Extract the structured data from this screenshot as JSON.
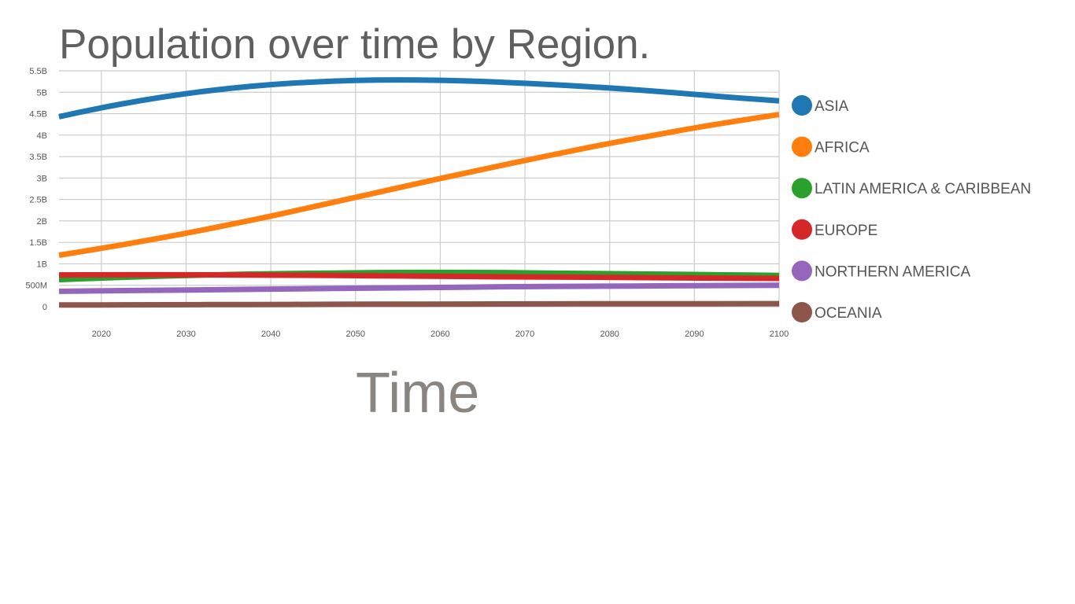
{
  "chart_data": {
    "type": "line",
    "title": "Population over time by Region.",
    "xlabel": "Time",
    "ylabel": "",
    "xlim": [
      2015,
      2100
    ],
    "ylim": [
      0,
      5500000000
    ],
    "x_ticks": [
      2020,
      2030,
      2040,
      2050,
      2060,
      2070,
      2080,
      2090,
      2100
    ],
    "y_ticks": [
      {
        "value": 0,
        "label": "0"
      },
      {
        "value": 500000000,
        "label": "500M"
      },
      {
        "value": 1000000000,
        "label": "1B"
      },
      {
        "value": 1500000000,
        "label": "1.5B"
      },
      {
        "value": 2000000000,
        "label": "2B"
      },
      {
        "value": 2500000000,
        "label": "2.5B"
      },
      {
        "value": 3000000000,
        "label": "3B"
      },
      {
        "value": 3500000000,
        "label": "3.5B"
      },
      {
        "value": 4000000000,
        "label": "4B"
      },
      {
        "value": 4500000000,
        "label": "4.5B"
      },
      {
        "value": 5000000000,
        "label": "5B"
      },
      {
        "value": 5500000000,
        "label": "5.5B"
      }
    ],
    "grid": true,
    "legend_position": "right",
    "x": [
      2015,
      2020,
      2025,
      2030,
      2035,
      2040,
      2045,
      2050,
      2055,
      2060,
      2065,
      2070,
      2075,
      2080,
      2085,
      2090,
      2095,
      2100
    ],
    "series": [
      {
        "name": "ASIA",
        "color": "#1f77b4",
        "values": [
          4430000000,
          4640000000,
          4820000000,
          4970000000,
          5090000000,
          5180000000,
          5240000000,
          5280000000,
          5290000000,
          5280000000,
          5250000000,
          5210000000,
          5160000000,
          5100000000,
          5030000000,
          4950000000,
          4870000000,
          4800000000
        ]
      },
      {
        "name": "AFRICA",
        "color": "#ff7f0e",
        "values": [
          1200000000,
          1360000000,
          1530000000,
          1710000000,
          1910000000,
          2110000000,
          2330000000,
          2550000000,
          2770000000,
          2990000000,
          3200000000,
          3410000000,
          3610000000,
          3810000000,
          3990000000,
          4170000000,
          4330000000,
          4480000000
        ]
      },
      {
        "name": "LATIN AMERICA & CARIBBEAN",
        "color": "#2ca02c",
        "values": [
          630000000,
          670000000,
          700000000,
          730000000,
          750000000,
          770000000,
          780000000,
          790000000,
          800000000,
          800000000,
          800000000,
          790000000,
          780000000,
          770000000,
          760000000,
          750000000,
          740000000,
          730000000
        ]
      },
      {
        "name": "EUROPE",
        "color": "#d62728",
        "values": [
          740000000,
          745000000,
          745000000,
          745000000,
          740000000,
          735000000,
          730000000,
          725000000,
          715000000,
          710000000,
          700000000,
          695000000,
          690000000,
          685000000,
          675000000,
          670000000,
          665000000,
          660000000
        ]
      },
      {
        "name": "NORTHERN AMERICA",
        "color": "#9467bd",
        "values": [
          360000000,
          370000000,
          380000000,
          390000000,
          400000000,
          410000000,
          420000000,
          430000000,
          440000000,
          450000000,
          460000000,
          470000000,
          475000000,
          480000000,
          485000000,
          490000000,
          495000000,
          500000000
        ]
      },
      {
        "name": "OCEANIA",
        "color": "#8c564b",
        "values": [
          40000000,
          42000000,
          45000000,
          48000000,
          50000000,
          52000000,
          55000000,
          57000000,
          59000000,
          61000000,
          63000000,
          65000000,
          66000000,
          68000000,
          69000000,
          70000000,
          71000000,
          72000000
        ]
      }
    ]
  }
}
